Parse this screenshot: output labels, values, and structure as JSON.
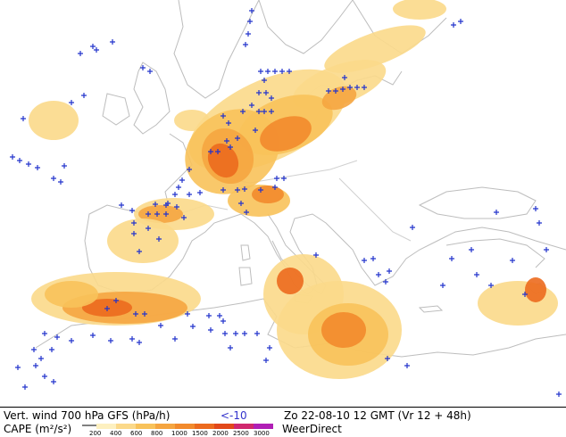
{
  "legend": {
    "title": "Vert. wind 700 hPa GFS (hPa/h)",
    "negative_marker": "<-10",
    "date_line": "Zo 22-08-10 12 GMT (Vr 12 + 48h)",
    "cape_label": "CAPE (m²/s²)",
    "brand": "WeerDirect",
    "cape_ticks": [
      "200",
      "400",
      "600",
      "800",
      "1000",
      "1500",
      "2000",
      "2500",
      "3000"
    ],
    "colors": [
      "#fdf0c0",
      "#fbd98a",
      "#f8c25a",
      "#f5a540",
      "#f28a2c",
      "#ec6a1e",
      "#e2481a",
      "#d0286e",
      "#b01fb5"
    ]
  },
  "map": {
    "plus_color": "#2233cc",
    "background": "#ffffff",
    "land_outline": "#b8b8b8"
  }
}
